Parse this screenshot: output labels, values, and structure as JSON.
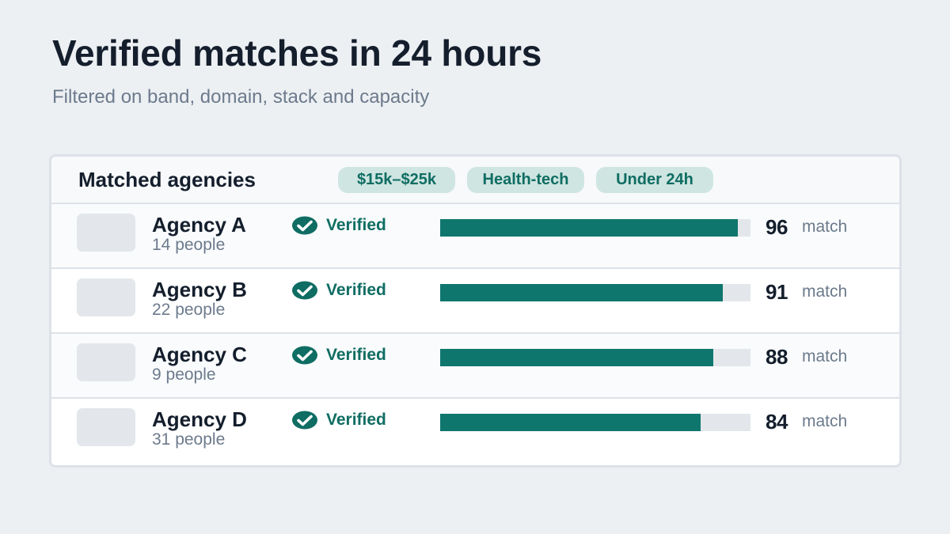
{
  "header": {
    "title": "Verified matches in 24 hours",
    "subtitle": "Filtered on band, domain, stack and capacity"
  },
  "card": {
    "title": "Matched agencies",
    "chips": [
      "$15k–$25k",
      "Health-tech",
      "Under 24h"
    ]
  },
  "colors": {
    "accent": "#0f766e",
    "chip_bg": "#cfe5e1",
    "track": "#e3e7eb"
  },
  "agencies": [
    {
      "name": "Agency A",
      "size": "14 people",
      "status": "Verified",
      "status_icon": "check-badge-icon",
      "score": 96,
      "score_unit": "match"
    },
    {
      "name": "Agency B",
      "size": "22 people",
      "status": "Verified",
      "status_icon": "check-badge-icon",
      "score": 91,
      "score_unit": "match"
    },
    {
      "name": "Agency C",
      "size": "9 people",
      "status": "Verified",
      "status_icon": "check-badge-icon",
      "score": 88,
      "score_unit": "match"
    },
    {
      "name": "Agency D",
      "size": "31 people",
      "status": "Verified",
      "status_icon": "check-badge-icon",
      "score": 84,
      "score_unit": "match"
    }
  ]
}
